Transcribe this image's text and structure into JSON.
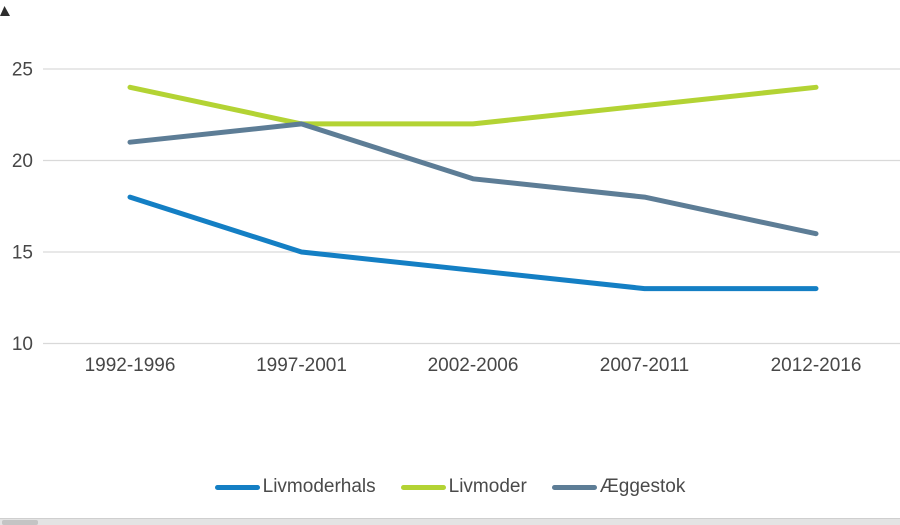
{
  "chart_data": {
    "type": "line",
    "categories": [
      "1992-1996",
      "1997-2001",
      "2002-2006",
      "2007-2011",
      "2012-2016"
    ],
    "series": [
      {
        "name": "Livmoderhals",
        "color": "#147FC4",
        "values": [
          18,
          15,
          14,
          13,
          13
        ]
      },
      {
        "name": "Livmoder",
        "color": "#B3D334",
        "values": [
          24,
          22,
          22,
          23,
          24
        ]
      },
      {
        "name": "Æggestok",
        "color": "#5D7D96",
        "values": [
          21,
          22,
          19,
          18,
          16
        ]
      }
    ],
    "y_ticks": [
      25,
      20,
      15,
      10
    ],
    "ylim": [
      10,
      25
    ],
    "title": "",
    "xlabel": "",
    "ylabel": "",
    "grid": "horizontal",
    "legend_position": "bottom"
  },
  "colors": {
    "gridline": "#D9D9D9",
    "axis_text": "#474747",
    "legend_text": "#4A4A4A",
    "scrollbar_track": "#E3E3E3",
    "scrollbar_thumb": "#C4C4C4",
    "corner_mark": "#2E2E2E"
  }
}
